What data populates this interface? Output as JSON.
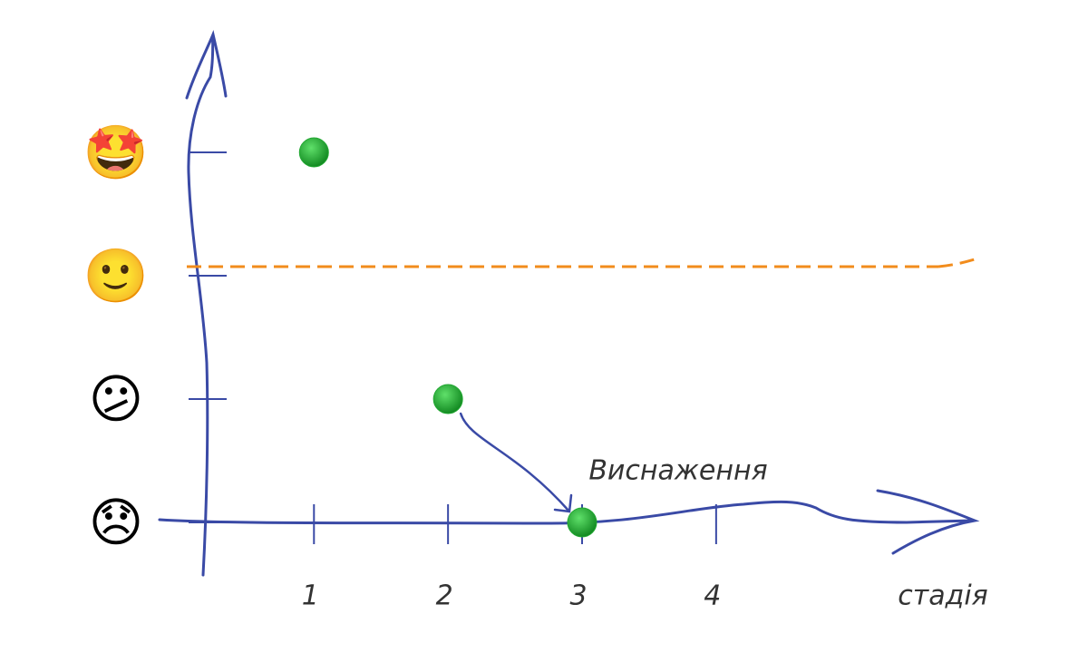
{
  "chart_data": {
    "type": "scatter",
    "x_label": "стадія",
    "xlim": [
      0.2,
      5.8
    ],
    "xticks": [
      1,
      2,
      3,
      4
    ],
    "ylim": [
      0,
      3
    ],
    "yticks": [
      {
        "value": 0,
        "label": "😞"
      },
      {
        "value": 1,
        "label": "😕"
      },
      {
        "value": 2,
        "label": "🙂"
      },
      {
        "value": 3,
        "label": "🤩"
      }
    ],
    "series": [
      {
        "color": "#22a832",
        "x": [
          1,
          2,
          3
        ],
        "y": [
          3,
          1,
          0
        ]
      }
    ],
    "reference_line": {
      "y": 2,
      "color": "#f28c1c",
      "dashed": true
    },
    "annotation": "Виснаження",
    "axis_color": "#3a4aa6"
  }
}
